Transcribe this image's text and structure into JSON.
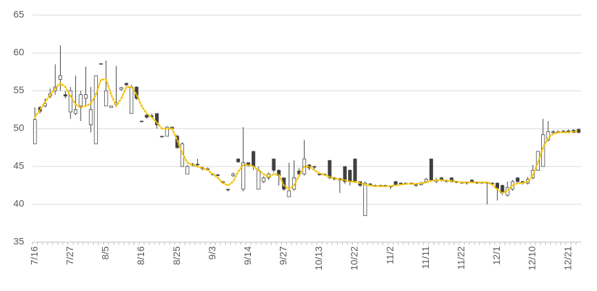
{
  "chart_data": {
    "type": "candlestick",
    "categories": [
      "7/16",
      null,
      null,
      null,
      null,
      null,
      null,
      "7/27",
      null,
      null,
      null,
      null,
      null,
      null,
      "8/5",
      null,
      null,
      null,
      null,
      null,
      null,
      "8/16",
      null,
      null,
      null,
      null,
      null,
      null,
      "8/25",
      null,
      null,
      null,
      null,
      null,
      null,
      "9/3",
      null,
      null,
      null,
      null,
      null,
      null,
      "9/14",
      null,
      null,
      null,
      null,
      null,
      null,
      "9/27",
      null,
      null,
      null,
      null,
      null,
      null,
      "10/13",
      null,
      null,
      null,
      null,
      null,
      null,
      "10/22",
      null,
      null,
      null,
      null,
      null,
      null,
      "11/2",
      null,
      null,
      null,
      null,
      null,
      null,
      "11/11",
      null,
      null,
      null,
      null,
      null,
      null,
      "11/22",
      null,
      null,
      null,
      null,
      null,
      null,
      "12/1",
      null,
      null,
      null,
      null,
      null,
      null,
      "12/10",
      null,
      null,
      null,
      null,
      null,
      null,
      "12/21",
      null,
      null
    ],
    "open": [
      48,
      52.8,
      53,
      54.3,
      55,
      56.5,
      54.5,
      52.2,
      52,
      53,
      54,
      50.5,
      48,
      58.5,
      53,
      52.8,
      53.2,
      55.2,
      56,
      52,
      55.5,
      51,
      51.8,
      51.7,
      52,
      49,
      49,
      50.2,
      49,
      45,
      44,
      45.2,
      45.3,
      44.8,
      44.6,
      44,
      43.9,
      43,
      42,
      43.8,
      46,
      42,
      45.5,
      47,
      42,
      43,
      43.5,
      46,
      44.5,
      43.5,
      41,
      42,
      44.4,
      44,
      45.2,
      45,
      44,
      44,
      45.8,
      43.5,
      43.4,
      45,
      44.5,
      46,
      43,
      38.5,
      42.7,
      42.5,
      42.4,
      42.5,
      42.4,
      43,
      42.8,
      42.7,
      42.8,
      42.5,
      42.6,
      43,
      46,
      43,
      43.5,
      43,
      43.5,
      43,
      42.9,
      42.9,
      43.2,
      42.9,
      42.9,
      42.9,
      42.8,
      42.8,
      42.5,
      41.2,
      42,
      43.5,
      43,
      42.8,
      43.5,
      44.5,
      45,
      48.5,
      49.5,
      49.5,
      49.6,
      49.7,
      49.8,
      49.9
    ],
    "high": [
      52.8,
      53,
      54,
      55.3,
      58.5,
      61,
      55,
      55.5,
      57,
      55,
      58.2,
      55.5,
      57,
      58.6,
      59,
      53,
      58.3,
      55.5,
      56,
      55.8,
      55.6,
      51,
      52,
      52,
      52,
      49,
      50.3,
      50.2,
      49.2,
      48.2,
      45.2,
      45.5,
      46,
      45,
      44.9,
      44,
      44,
      43,
      42,
      44.2,
      46,
      50.2,
      45.5,
      47,
      45,
      43.7,
      44.2,
      46,
      44.6,
      43.5,
      45.5,
      45.8,
      44.8,
      48.5,
      45.3,
      45.1,
      44.2,
      44,
      45.8,
      43.6,
      43.5,
      45,
      44.6,
      46,
      43,
      43,
      42.8,
      42.6,
      42.6,
      42.6,
      42.5,
      43.1,
      42.9,
      42.9,
      42.9,
      42.8,
      43,
      43.5,
      46,
      43.5,
      43.6,
      43.3,
      43.6,
      43.1,
      43,
      43,
      43.3,
      43,
      43,
      42.9,
      42.9,
      42.9,
      42.6,
      43,
      43.2,
      43.6,
      43.1,
      43.6,
      45.2,
      47,
      51.3,
      51,
      49.8,
      49.8,
      49.8,
      49.9,
      49.9,
      50
    ],
    "low": [
      48,
      52,
      52.8,
      54,
      54.5,
      55,
      54,
      51.3,
      51.8,
      51,
      53,
      49.5,
      48,
      58.5,
      53,
      52.8,
      53,
      55,
      55.6,
      52,
      53.8,
      50.9,
      51.3,
      51.5,
      50,
      48.9,
      49,
      49.8,
      47.3,
      45,
      44,
      45,
      45,
      44.5,
      44.5,
      43.8,
      43.7,
      42.8,
      41.7,
      43.6,
      45.5,
      41.7,
      45,
      44.5,
      42,
      42.8,
      43.2,
      44.2,
      42.5,
      41.8,
      41,
      41.8,
      43.6,
      43.8,
      44.5,
      44.5,
      43.8,
      43.8,
      43.3,
      43.2,
      41.5,
      42.7,
      42.5,
      42.8,
      42.3,
      38.5,
      42.4,
      42.3,
      42.3,
      42.3,
      42,
      42.5,
      42.5,
      42.6,
      42.6,
      42.3,
      42.5,
      42.8,
      43,
      42.8,
      43,
      42.9,
      42.9,
      42.8,
      42.7,
      42.6,
      42.8,
      42.7,
      42.7,
      40,
      42.5,
      40.5,
      41.2,
      41,
      41.8,
      42.8,
      42.6,
      42.6,
      43.3,
      44.5,
      45,
      48.3,
      49.3,
      49.4,
      49.5,
      49.4,
      49.4,
      49.4
    ],
    "close": [
      51.2,
      52.3,
      53.3,
      54.6,
      55.5,
      57,
      54.3,
      55,
      52.5,
      54.5,
      54.5,
      52.5,
      57,
      58.6,
      55,
      53,
      53.4,
      55.4,
      55.8,
      55.5,
      54,
      50.9,
      51.5,
      51.6,
      50.5,
      48.9,
      50.2,
      50,
      47.5,
      48,
      45,
      45.3,
      45.2,
      44.7,
      44.7,
      43.9,
      43.8,
      42.9,
      41.9,
      44,
      45.6,
      45.5,
      45.2,
      45,
      44.5,
      43.5,
      44,
      44.5,
      43.8,
      42,
      41.8,
      43.5,
      44,
      46,
      44.8,
      44.9,
      43.9,
      43.9,
      43.5,
      43.3,
      43.2,
      43,
      43,
      43,
      42.5,
      42.8,
      42.6,
      42.4,
      42.5,
      42.4,
      42.3,
      42.6,
      42.7,
      42.8,
      42.7,
      42.6,
      42.8,
      43.3,
      43.2,
      43.2,
      43.2,
      43.1,
      43,
      42.9,
      42.8,
      42.8,
      42.9,
      42.8,
      42.8,
      42.8,
      42.7,
      42.1,
      41.5,
      42.2,
      43,
      43,
      42.9,
      43.3,
      44.5,
      47,
      49.2,
      49.6,
      49.6,
      49.6,
      49.7,
      49.6,
      49.5,
      49.5
    ],
    "ma": [
      51.5,
      52.5,
      53.5,
      54.5,
      55.3,
      56,
      55.5,
      54.3,
      53.2,
      52.8,
      53,
      53.3,
      54.5,
      56.5,
      56.5,
      54.5,
      53,
      54,
      55.5,
      55.5,
      54.5,
      53,
      52,
      51.5,
      50.8,
      50,
      50,
      50,
      48.5,
      46.8,
      45.5,
      45.2,
      45,
      44.8,
      44.5,
      44,
      43.5,
      42.8,
      42.5,
      43,
      44.3,
      45.2,
      45.2,
      45,
      44.5,
      44,
      43.6,
      44,
      43.9,
      42.5,
      42,
      42.5,
      43.8,
      45,
      45,
      44.5,
      44.1,
      43.9,
      43.6,
      43.4,
      43.3,
      43.2,
      43,
      43,
      42.8,
      42.6,
      42.5,
      42.4,
      42.4,
      42.4,
      42.4,
      42.5,
      42.6,
      42.7,
      42.7,
      42.7,
      42.8,
      42.9,
      43.1,
      43.2,
      43.2,
      43.1,
      43.1,
      43,
      42.9,
      42.9,
      42.9,
      42.9,
      42.9,
      42.9,
      42.6,
      42,
      41.5,
      41.8,
      42.5,
      42.8,
      42.8,
      43,
      43.8,
      45.5,
      47.5,
      48.8,
      49.3,
      49.5,
      49.5,
      49.5,
      49.6,
      49.7
    ],
    "up_color": "#ffffff",
    "down_color": "#404040",
    "ma_color": "#f2c200",
    "ylim": [
      35,
      65
    ],
    "yticks": [
      35,
      40,
      45,
      50,
      55,
      60,
      65
    ],
    "grid": true
  }
}
